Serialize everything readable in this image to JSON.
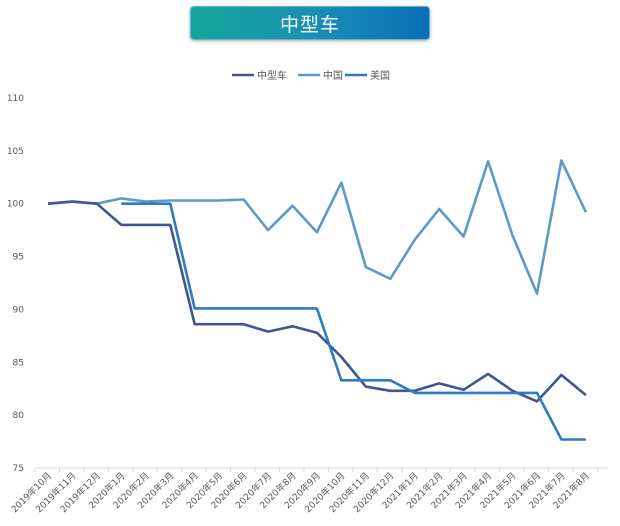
{
  "header": {
    "title": "中型车"
  },
  "chart_data": {
    "type": "line",
    "title": "中型车",
    "xlabel": "",
    "ylabel": "",
    "ylim": [
      75,
      110
    ],
    "yticks": [
      75,
      80,
      85,
      90,
      95,
      100,
      105,
      110
    ],
    "grid": false,
    "legend_position": "top-center",
    "categories": [
      "2019年10月",
      "2019年11月",
      "2019年12月",
      "2020年1月",
      "2020年2月",
      "2020年3月",
      "2020年4月",
      "2020年5月",
      "2020年6月",
      "2020年7月",
      "2020年8月",
      "2020年9月",
      "2020年10月",
      "2020年11月",
      "2020年12月",
      "2021年1月",
      "2021年2月",
      "2021年3月",
      "2021年4月",
      "2021年5月",
      "2021年6月",
      "2021年7月",
      "2021年8月"
    ],
    "series": [
      {
        "name": "中型车",
        "color": "#44548f",
        "values": [
          100,
          100.2,
          100,
          98,
          98,
          98,
          88.6,
          88.6,
          88.6,
          87.9,
          88.4,
          87.8,
          85.5,
          82.7,
          82.3,
          82.3,
          83.0,
          82.4,
          83.9,
          82.3,
          81.3,
          83.8,
          81.9
        ]
      },
      {
        "name": "中国",
        "color": "#5b9bc8",
        "values": [
          100,
          100.2,
          100,
          100.5,
          100.2,
          100.3,
          100.3,
          100.3,
          100.4,
          97.5,
          99.8,
          97.3,
          102.0,
          94.0,
          92.9,
          96.6,
          99.5,
          96.9,
          104.0,
          97.0,
          91.5,
          104.1,
          99.2
        ]
      },
      {
        "name": "美国",
        "color": "#2e7bc4",
        "values": [
          null,
          null,
          null,
          100,
          100,
          100,
          90.1,
          90.1,
          90.1,
          90.1,
          90.1,
          90.1,
          83.3,
          83.3,
          83.3,
          82.1,
          82.1,
          82.1,
          82.1,
          82.1,
          82.1,
          77.7,
          77.7
        ]
      }
    ]
  }
}
